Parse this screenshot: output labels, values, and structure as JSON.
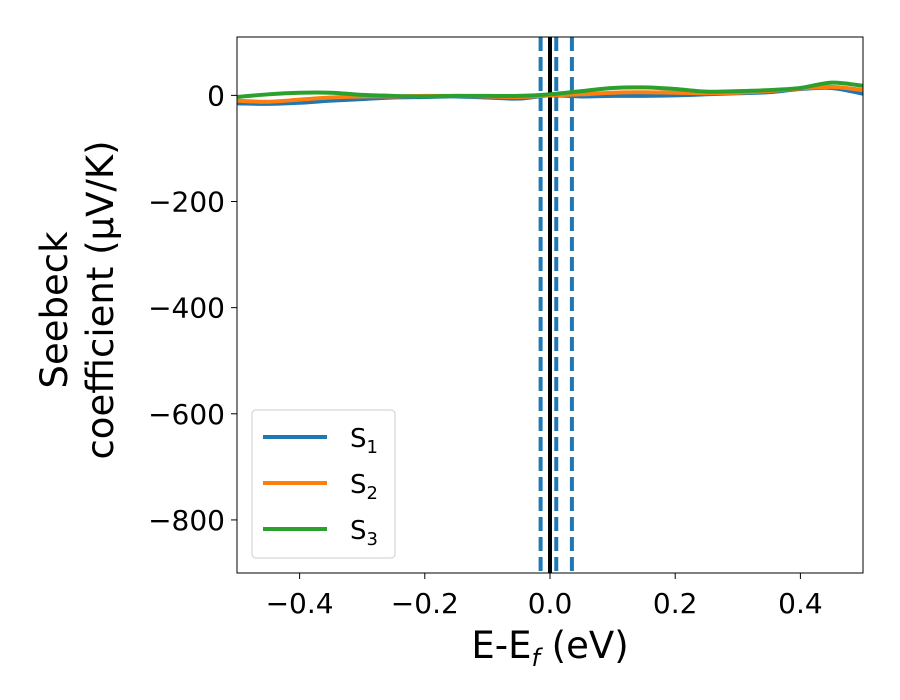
{
  "chart_data": {
    "type": "line",
    "xlabel": "E-E",
    "xlabel_sub": "f",
    "xlabel_unit": " (eV)",
    "ylabel_line1": "Seebeck",
    "ylabel_line2": "coefficient  (μV/K)",
    "xlim": [
      -0.5,
      0.5
    ],
    "ylim": [
      -900,
      110
    ],
    "x_ticks": [
      -0.4,
      -0.2,
      0.0,
      0.2,
      0.4
    ],
    "x_tick_labels": [
      "−0.4",
      "−0.2",
      "0.0",
      "0.2",
      "0.4"
    ],
    "y_ticks": [
      0,
      -200,
      -400,
      -600,
      -800
    ],
    "y_tick_labels": [
      "0",
      "−200",
      "−400",
      "−600",
      "−800"
    ],
    "grid": false,
    "legend_position": "lower-left",
    "vertical_lines": [
      {
        "x": 0.0,
        "style": "solid",
        "color": "#000000"
      },
      {
        "x": -0.015,
        "style": "dashed",
        "color": "#1f77b4"
      },
      {
        "x": 0.01,
        "style": "dashed",
        "color": "#1f77b4"
      },
      {
        "x": 0.035,
        "style": "dashed",
        "color": "#1f77b4"
      }
    ],
    "x": [
      -0.5,
      -0.45,
      -0.4,
      -0.35,
      -0.3,
      -0.25,
      -0.2,
      -0.15,
      -0.1,
      -0.05,
      0.0,
      0.05,
      0.1,
      0.15,
      0.2,
      0.25,
      0.3,
      0.35,
      0.4,
      0.45,
      0.5
    ],
    "series": [
      {
        "name": "S",
        "sub": "1",
        "color": "#1f77b4",
        "values": [
          -15,
          -16,
          -14,
          -10,
          -7,
          -4,
          -3,
          -2,
          -4,
          -6,
          0,
          -2,
          -1,
          -1,
          0,
          2,
          4,
          6,
          12,
          14,
          3
        ]
      },
      {
        "name": "S",
        "sub": "2",
        "color": "#ff7f0e",
        "values": [
          -10,
          -12,
          -8,
          -4,
          -2,
          -2,
          -1,
          -1,
          -2,
          -3,
          0,
          2,
          5,
          6,
          5,
          4,
          5,
          8,
          13,
          16,
          10
        ]
      },
      {
        "name": "S",
        "sub": "3",
        "color": "#2ca02c",
        "values": [
          -3,
          2,
          5,
          5,
          1,
          -1,
          -2,
          -1,
          -1,
          -1,
          2,
          8,
          14,
          15,
          12,
          7,
          8,
          10,
          14,
          24,
          18
        ]
      }
    ]
  }
}
